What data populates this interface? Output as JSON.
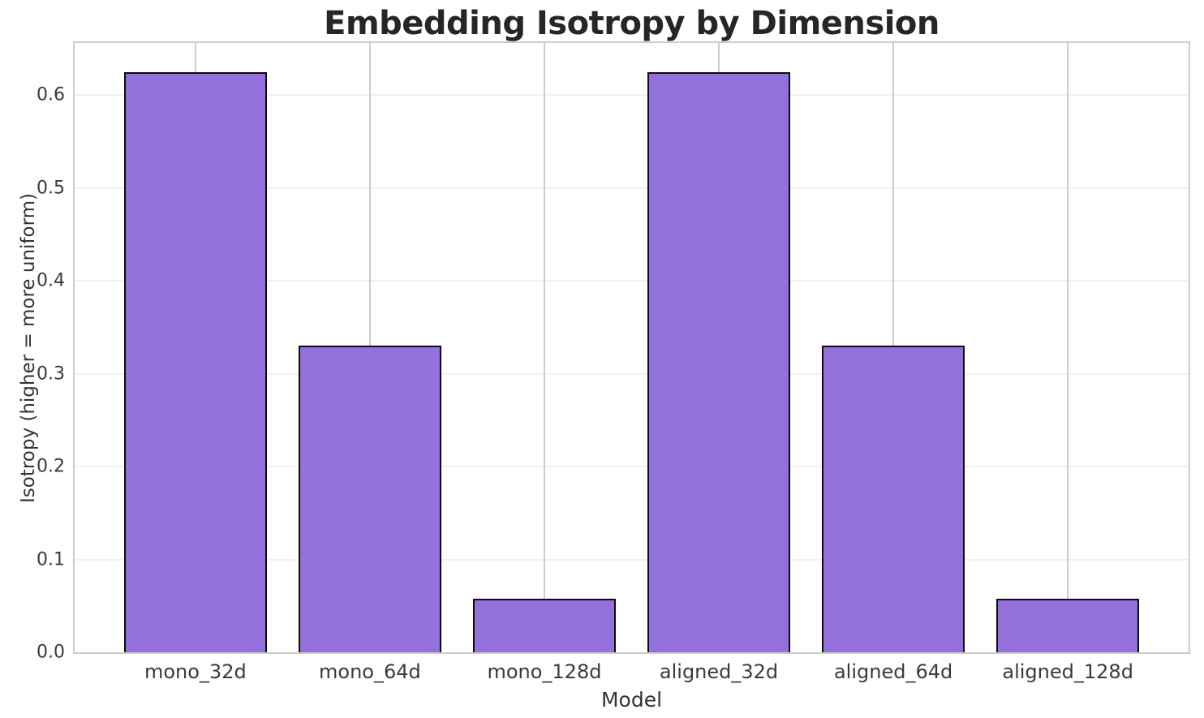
{
  "chart_data": {
    "type": "bar",
    "title": "Embedding Isotropy by Dimension",
    "xlabel": "Model",
    "ylabel": "Isotropy (higher = more uniform)",
    "categories": [
      "mono_32d",
      "mono_64d",
      "mono_128d",
      "aligned_32d",
      "aligned_64d",
      "aligned_128d"
    ],
    "values": [
      0.625,
      0.33,
      0.058,
      0.625,
      0.33,
      0.058
    ],
    "ylim": [
      0,
      0.656
    ],
    "yticks": [
      0.0,
      0.1,
      0.2,
      0.3,
      0.4,
      0.5,
      0.6
    ],
    "yticklabels": [
      "0.0",
      "0.1",
      "0.2",
      "0.3",
      "0.4",
      "0.5",
      "0.6"
    ],
    "grid": true,
    "legend": "none",
    "bar_color": "#9370DB",
    "bar_edge_color": "#0d0d0d",
    "gridline_h_color": "#f0f0f0",
    "gridline_v_color": "#cccccc",
    "spine_color": "#cccccc",
    "layout": {
      "first_bar_center_pct": 10.84,
      "last_bar_center_pct": 89.16,
      "bar_width_pct": 12.78
    }
  }
}
